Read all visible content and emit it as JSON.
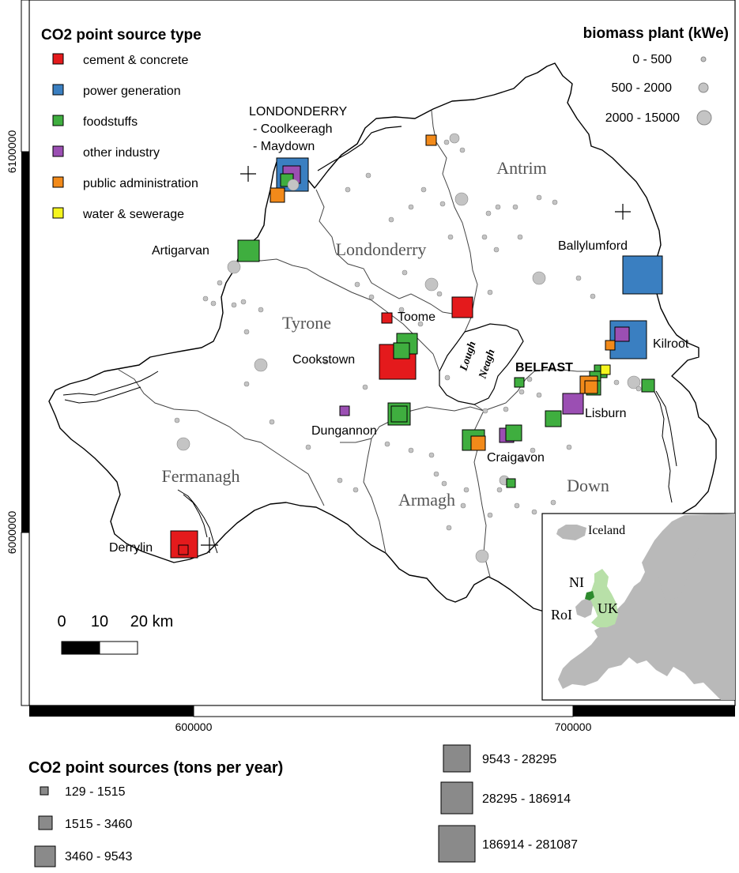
{
  "map": {
    "legend_type": {
      "title": "CO2 point source type",
      "items": [
        {
          "label": "cement & concrete",
          "color": "#e41a1c"
        },
        {
          "label": "power generation",
          "color": "#3a7fc1"
        },
        {
          "label": "foodstuffs",
          "color": "#3fae3f"
        },
        {
          "label": "other industry",
          "color": "#9b4fb3"
        },
        {
          "label": "public administration",
          "color": "#f28a1a"
        },
        {
          "label": "water & sewerage",
          "color": "#f5f51e"
        }
      ]
    },
    "legend_biomass": {
      "title": "biomass plant (kWe)",
      "items": [
        {
          "label": "0 - 500"
        },
        {
          "label": "500 - 2000"
        },
        {
          "label": "2000 - 15000"
        }
      ]
    },
    "legend_size": {
      "title": "CO2 point sources (tons per year)",
      "items": [
        {
          "label": "129 - 1515"
        },
        {
          "label": "1515 - 3460"
        },
        {
          "label": "3460 - 9543"
        },
        {
          "label": "9543 - 28295"
        },
        {
          "label": "28295 - 186914"
        },
        {
          "label": "186914 - 281087"
        }
      ]
    },
    "county_labels": [
      "Antrim",
      "Londonderry",
      "Tyrone",
      "Fermanagh",
      "Armagh",
      "Down"
    ],
    "lough_label": [
      "Lough",
      "Neagh"
    ],
    "place_labels": {
      "londonderry_title": "LONDONDERRY",
      "coolkeeragh": "- Coolkeeragh",
      "maydown": "- Maydown",
      "artigarvan": "Artigarvan",
      "ballylumford": "Ballylumford",
      "toome": "Toome",
      "kilroot": "Kilroot",
      "cookstown": "Cookstown",
      "belfast": "BELFAST",
      "lisburn": "Lisburn",
      "dungannon": "Dungannon",
      "craigavon": "Craigavon",
      "derrylin": "Derrylin"
    },
    "scalebar": {
      "labels": [
        "0",
        "10",
        "20 km"
      ]
    },
    "axis": {
      "x_ticks": [
        "600000",
        "700000"
      ],
      "y_ticks": [
        "6100000",
        "6000000"
      ]
    },
    "inset": {
      "labels": {
        "iceland": "Iceland",
        "ni": "NI",
        "uk": "UK",
        "roi": "RoI"
      }
    },
    "colors": {
      "cement": "#e41a1c",
      "power": "#3a7fc1",
      "food": "#3fae3f",
      "other": "#9b4fb3",
      "public": "#f28a1a",
      "water": "#f5f51e",
      "biomass": "#c4c4c4",
      "size_legend": "#8a8a8a"
    }
  }
}
